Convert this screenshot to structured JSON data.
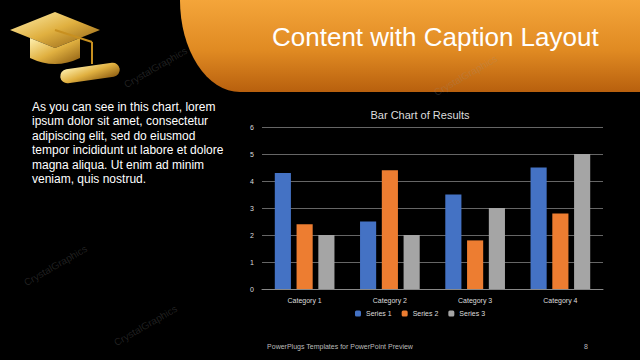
{
  "slide": {
    "title": "Content with Caption Layout",
    "caption": "As you can see in this chart, lorem ipsum dolor sit amet, consectetur adipiscing elit, sed do eiusmod tempor incididunt ut labore et dolore magna aliqua. Ut enim ad minim veniam, quis nostrud.",
    "footer": "PowerPlugs Templates for PowerPoint Preview",
    "page": 8,
    "watermark": "CrystalGraphics"
  },
  "chart_data": {
    "type": "bar",
    "title": "Bar Chart of Results",
    "categories": [
      "Category 1",
      "Category 2",
      "Category 3",
      "Category 4"
    ],
    "series": [
      {
        "name": "Series 1",
        "color": "#4472c4",
        "values": [
          4.3,
          2.5,
          3.5,
          4.5
        ]
      },
      {
        "name": "Series 2",
        "color": "#ed7d31",
        "values": [
          2.4,
          4.4,
          1.8,
          2.8
        ]
      },
      {
        "name": "Series 3",
        "color": "#a5a5a5",
        "values": [
          2,
          2,
          3,
          5
        ]
      }
    ],
    "ylim": [
      0,
      6
    ],
    "yticks": [
      0,
      1,
      2,
      3,
      4,
      5,
      6
    ],
    "grid": true,
    "legend": "bottom"
  }
}
